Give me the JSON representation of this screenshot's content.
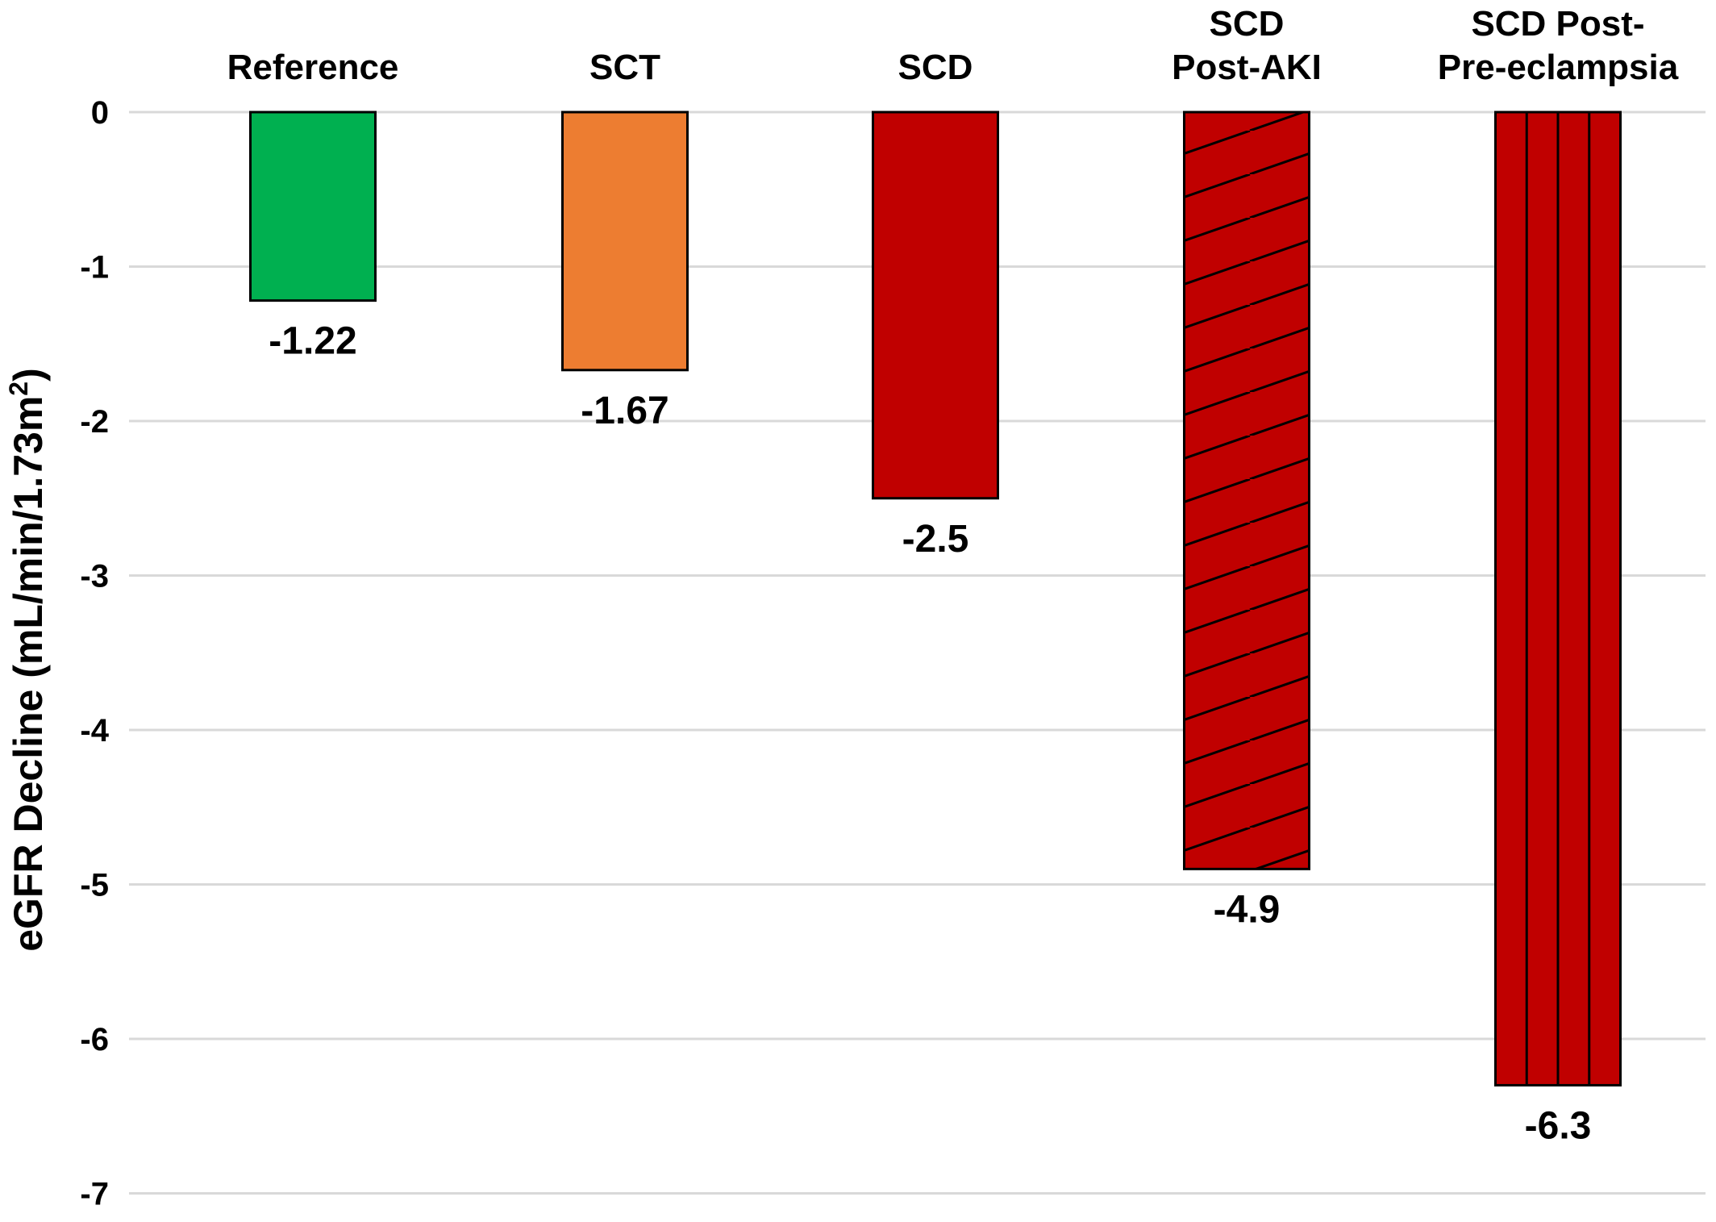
{
  "chart_data": {
    "type": "bar",
    "title": "",
    "xlabel": "",
    "ylabel": "eGFR Decline (mL/min/1.73m",
    "ylabel_superscript": "2",
    "ylabel_close": ")",
    "ylim": [
      -7,
      0
    ],
    "yticks": [
      "0",
      "-1",
      "-2",
      "-3",
      "-4",
      "-5",
      "-6",
      "-7"
    ],
    "grid": "horizontal",
    "categories": [
      [
        "Reference"
      ],
      [
        "SCT"
      ],
      [
        "SCD"
      ],
      [
        "SCD",
        "Post-AKI"
      ],
      [
        "SCD Post-",
        "Pre-eclampsia"
      ]
    ],
    "values": [
      -1.22,
      -1.67,
      -2.5,
      -4.9,
      -6.3
    ],
    "value_labels": [
      "-1.22",
      "-1.67",
      "-2.5",
      "-4.9",
      "-6.3"
    ],
    "bar_colors": [
      "#00B050",
      "#ED7D31",
      "#C00000",
      "#C00000",
      "#C00000"
    ],
    "bar_patterns": [
      "solid",
      "solid",
      "solid",
      "diagonal-hatch",
      "vertical-stripes"
    ],
    "gridline_color": "#D9D9D9",
    "bar_outline_color": "#000000"
  }
}
